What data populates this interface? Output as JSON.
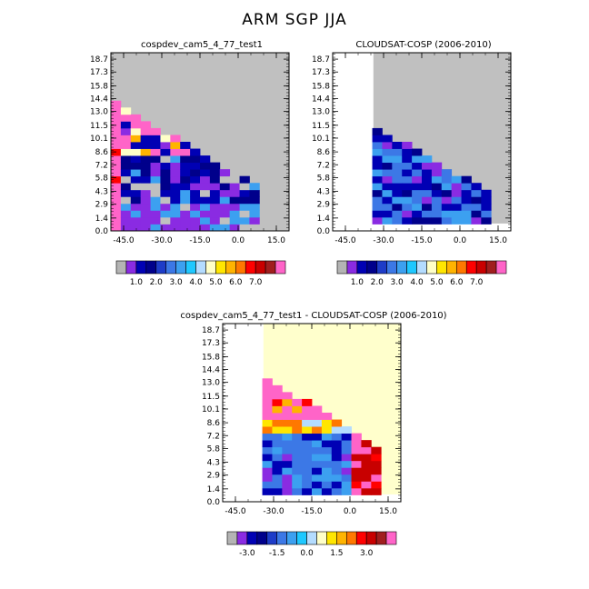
{
  "page_title": "ARM SGP JJA",
  "chart_data": [
    {
      "type": "heatmap",
      "title": "cospdev_cam5_4_77_test1",
      "x_ticks": [
        "-45.0",
        "-30.0",
        "-15.0",
        "0.0",
        "15.0"
      ],
      "y_ticks": [
        "0.0",
        "1.4",
        "2.9",
        "4.3",
        "5.8",
        "7.2",
        "8.6",
        "10.1",
        "11.5",
        "13.0",
        "14.4",
        "15.8",
        "17.3",
        "18.7"
      ],
      "xlim": [
        -50,
        20
      ],
      "ylim": [
        0,
        19.4
      ],
      "colorbar_labels": [
        "1.0",
        "2.0",
        "3.0",
        "4.0",
        "5.0",
        "6.0",
        "7.0"
      ],
      "missing_color": "#c0c0c0"
    },
    {
      "type": "heatmap",
      "title": "CLOUDSAT-COSP (2006-2010)",
      "x_ticks": [
        "-45.0",
        "-30.0",
        "-15.0",
        "0.0",
        "15.0"
      ],
      "y_ticks": [
        "0.0",
        "1.4",
        "2.9",
        "4.3",
        "5.8",
        "7.2",
        "8.6",
        "10.1",
        "11.5",
        "13.0",
        "14.4",
        "15.8",
        "17.3",
        "18.7"
      ],
      "xlim": [
        -50,
        20
      ],
      "ylim": [
        0,
        19.4
      ],
      "colorbar_labels": [
        "1.0",
        "2.0",
        "3.0",
        "4.0",
        "5.0",
        "6.0",
        "7.0"
      ],
      "missing_color": "#c0c0c0"
    },
    {
      "type": "heatmap",
      "title": "cospdev_cam5_4_77_test1 - CLOUDSAT-COSP (2006-2010)",
      "x_ticks": [
        "-45.0",
        "-30.0",
        "-15.0",
        "0.0",
        "15.0"
      ],
      "y_ticks": [
        "0.0",
        "1.4",
        "2.9",
        "4.3",
        "5.8",
        "7.2",
        "8.6",
        "10.1",
        "11.5",
        "13.0",
        "14.4",
        "15.8",
        "17.3",
        "18.7"
      ],
      "xlim": [
        -50,
        20
      ],
      "ylim": [
        0,
        19.4
      ],
      "colorbar_labels": [
        "-3.0",
        "-1.5",
        "0.0",
        "1.5",
        "3.0"
      ],
      "missing_color": "#ffffcc"
    }
  ],
  "colors": {
    "seq_palette": [
      "#b4b4b4",
      "#8a2be2",
      "#0000b4",
      "#00008b",
      "#1e3cc8",
      "#3c78e6",
      "#3ca0f0",
      "#1ec8ff",
      "#b4dcff",
      "#ffffc8",
      "#ffe600",
      "#ffb400",
      "#ff7800",
      "#ff0000",
      "#c80000",
      "#a01e1e",
      "#ff64c8"
    ],
    "diff_palette": [
      "#b4b4b4",
      "#8a2be2",
      "#0000b4",
      "#00008b",
      "#1e3cc8",
      "#3c78e6",
      "#3ca0f0",
      "#1ec8ff",
      "#b4dcff",
      "#ffffc8",
      "#ffe600",
      "#ffb400",
      "#ff7800",
      "#ff0000",
      "#c80000",
      "#a01e1e",
      "#ff64c8"
    ]
  }
}
